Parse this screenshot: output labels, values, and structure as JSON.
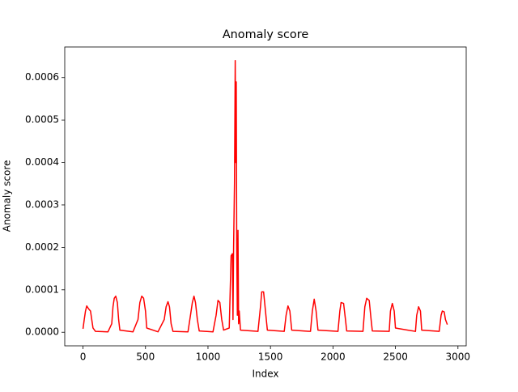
{
  "chart_data": {
    "type": "line",
    "title": "Anomaly score",
    "x_label": "Index",
    "y_label": "Anomaly score",
    "series": [
      {
        "name": "Anomaly score",
        "color": "#ff0000",
        "x": [
          0,
          10,
          20,
          30,
          45,
          60,
          70,
          80,
          100,
          200,
          230,
          240,
          250,
          262,
          275,
          285,
          295,
          400,
          440,
          455,
          470,
          485,
          500,
          510,
          600,
          650,
          665,
          680,
          692,
          705,
          720,
          840,
          860,
          875,
          888,
          900,
          915,
          930,
          1040,
          1065,
          1080,
          1095,
          1110,
          1125,
          1170,
          1185,
          1195,
          1200,
          1205,
          1212,
          1218,
          1222,
          1226,
          1230,
          1235,
          1240,
          1245,
          1250,
          1260,
          1400,
          1420,
          1430,
          1445,
          1460,
          1475,
          1610,
          1625,
          1640,
          1655,
          1670,
          1820,
          1835,
          1850,
          1865,
          1880,
          2040,
          2055,
          2065,
          2085,
          2100,
          2110,
          2240,
          2255,
          2270,
          2290,
          2305,
          2315,
          2450,
          2460,
          2475,
          2490,
          2500,
          2660,
          2670,
          2685,
          2700,
          2710,
          2850,
          2865,
          2875,
          2890,
          2900,
          2915
        ],
        "values": [
          8e-06,
          3e-05,
          5e-05,
          6.2e-05,
          5.5e-05,
          5e-05,
          3e-05,
          1e-05,
          2e-06,
          1e-06,
          2e-05,
          6e-05,
          8e-05,
          8.5e-05,
          7e-05,
          3e-05,
          5e-06,
          1e-06,
          3e-05,
          7e-05,
          8.5e-05,
          8e-05,
          5e-05,
          1e-05,
          1e-06,
          3e-05,
          6e-05,
          7.2e-05,
          6e-05,
          2e-05,
          2e-06,
          1e-06,
          4e-05,
          7e-05,
          8.5e-05,
          7e-05,
          3e-05,
          3e-06,
          1e-06,
          4e-05,
          7.5e-05,
          7e-05,
          3e-05,
          5e-06,
          1e-05,
          0.00018,
          0.000185,
          3e-05,
          0.0002,
          0.00035,
          0.00064,
          0.0004,
          0.00059,
          0.0002,
          4e-05,
          0.00024,
          2e-05,
          5e-05,
          5e-06,
          2e-06,
          6e-05,
          9.5e-05,
          9.5e-05,
          5e-05,
          5e-06,
          2e-06,
          4e-05,
          6.2e-05,
          5e-05,
          5e-06,
          2e-06,
          5e-05,
          7.8e-05,
          5e-05,
          5e-06,
          2e-06,
          5e-05,
          7e-05,
          6.8e-05,
          3e-05,
          3e-06,
          2e-06,
          6e-05,
          8e-05,
          7.5e-05,
          3e-05,
          3e-06,
          2e-06,
          5e-05,
          6.8e-05,
          5e-05,
          1e-05,
          2e-06,
          4e-05,
          6e-05,
          5e-05,
          5e-06,
          2e-06,
          4e-05,
          5e-05,
          4.8e-05,
          3e-05,
          1.8e-05
        ]
      }
    ],
    "xlim": [
      -146,
      3066
    ],
    "ylim": [
      -3.2e-05,
      0.000672
    ],
    "xticks": [
      0,
      500,
      1000,
      1500,
      2000,
      2500,
      3000
    ],
    "yticks": [
      {
        "value": 0,
        "label": "0.0000"
      },
      {
        "value": 0.0001,
        "label": "0.0001"
      },
      {
        "value": 0.0002,
        "label": "0.0002"
      },
      {
        "value": 0.0003,
        "label": "0.0003"
      },
      {
        "value": 0.0004,
        "label": "0.0004"
      },
      {
        "value": 0.0005,
        "label": "0.0005"
      },
      {
        "value": 0.0006,
        "label": "0.0006"
      }
    ]
  }
}
